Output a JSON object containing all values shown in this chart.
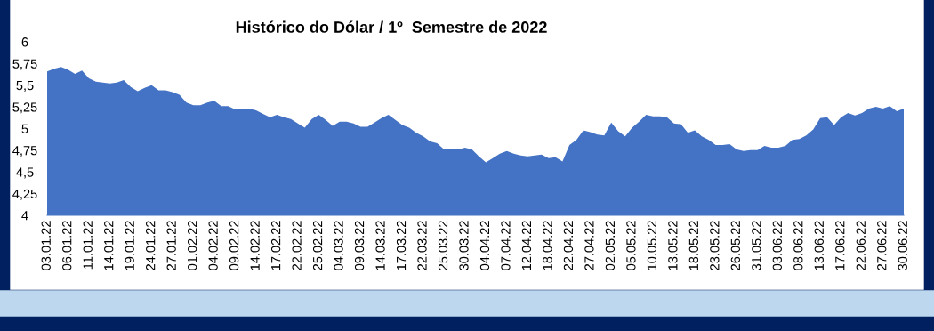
{
  "chart_data": {
    "type": "area",
    "title": "Histórico do Dólar / 1º  Semestre de 2022",
    "categories": [
      "03.01.22",
      null,
      null,
      "06.01.22",
      null,
      null,
      "11.01.22",
      null,
      null,
      "14.01.22",
      null,
      null,
      "19.01.22",
      null,
      null,
      "24.01.22",
      null,
      null,
      "27.01.22",
      null,
      null,
      "01.02.22",
      null,
      null,
      "04.02.22",
      null,
      null,
      "09.02.22",
      null,
      null,
      "14.02.22",
      null,
      null,
      "17.02.22",
      null,
      null,
      "22.02.22",
      null,
      null,
      "25.02.22",
      null,
      null,
      "04.03.22",
      null,
      null,
      "09.03.22",
      null,
      null,
      "14.03.22",
      null,
      null,
      "17.03.22",
      null,
      null,
      "22.03.22",
      null,
      null,
      "25.03.22",
      null,
      null,
      "30.03.22",
      null,
      null,
      "04.04.22",
      null,
      null,
      "07.04.22",
      null,
      null,
      "12.04.22",
      null,
      null,
      "18.04.22",
      null,
      null,
      "22.04.22",
      null,
      null,
      "27.04.22",
      null,
      null,
      "02.05.22",
      null,
      null,
      "05.05.22",
      null,
      null,
      "10.05.22",
      null,
      null,
      "13.05.22",
      null,
      null,
      "18.05.22",
      null,
      null,
      "23.05.22",
      null,
      null,
      "26.05.22",
      null,
      null,
      "31.05.22",
      null,
      null,
      "03.06.22",
      null,
      null,
      "08.06.22",
      null,
      null,
      "13.06.22",
      null,
      null,
      "17.06.22",
      null,
      null,
      "22.06.22",
      null,
      null,
      "27.06.22",
      null,
      null,
      "30.06.22"
    ],
    "series": [
      {
        "color": "#4472c4",
        "values": [
          5.66,
          5.69,
          5.71,
          5.68,
          5.63,
          5.67,
          5.58,
          5.54,
          5.53,
          5.52,
          5.53,
          5.56,
          5.48,
          5.43,
          5.47,
          5.5,
          5.44,
          5.44,
          5.42,
          5.39,
          5.3,
          5.27,
          5.27,
          5.3,
          5.32,
          5.26,
          5.26,
          5.22,
          5.23,
          5.23,
          5.21,
          5.17,
          5.13,
          5.16,
          5.13,
          5.11,
          5.06,
          5.01,
          5.11,
          5.16,
          5.1,
          5.03,
          5.08,
          5.08,
          5.06,
          5.02,
          5.02,
          5.07,
          5.12,
          5.16,
          5.1,
          5.04,
          5.01,
          4.95,
          4.91,
          4.85,
          4.83,
          4.76,
          4.77,
          4.76,
          4.78,
          4.76,
          4.68,
          4.61,
          4.66,
          4.71,
          4.74,
          4.71,
          4.69,
          4.68,
          4.69,
          4.7,
          4.66,
          4.67,
          4.62,
          4.81,
          4.87,
          4.98,
          4.96,
          4.93,
          4.92,
          5.07,
          4.97,
          4.91,
          5.01,
          5.08,
          5.16,
          5.14,
          5.14,
          5.13,
          5.06,
          5.05,
          4.95,
          4.98,
          4.91,
          4.87,
          4.81,
          4.81,
          4.82,
          4.76,
          4.74,
          4.75,
          4.75,
          4.8,
          4.78,
          4.78,
          4.8,
          4.87,
          4.88,
          4.92,
          4.99,
          5.12,
          5.13,
          5.04,
          5.13,
          5.18,
          5.15,
          5.18,
          5.23,
          5.25,
          5.23,
          5.26,
          5.2,
          5.23
        ]
      }
    ],
    "ylim": [
      4,
      6
    ],
    "yticks": [
      4,
      {
        "value": 4.25,
        "label": "4,25"
      },
      {
        "value": 4.5,
        "label": "4,5"
      },
      {
        "value": 4.75,
        "label": "4,75"
      },
      5,
      {
        "value": 5.25,
        "label": "5,25"
      },
      {
        "value": 5.5,
        "label": "5,5"
      },
      {
        "value": 5.75,
        "label": "5,75"
      },
      6
    ],
    "grid": false,
    "legend": false
  }
}
